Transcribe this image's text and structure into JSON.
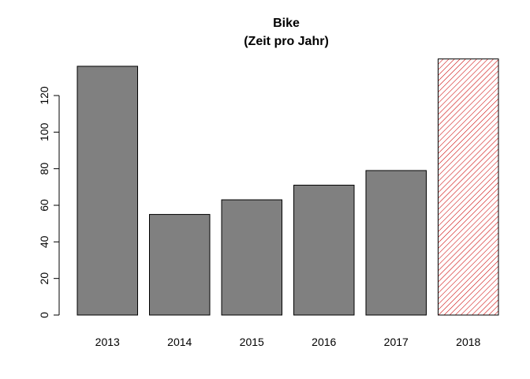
{
  "chart_data": {
    "type": "bar",
    "title": "Bike",
    "subtitle": "(Zeit pro Jahr)",
    "xlabel": "",
    "ylabel": "",
    "categories": [
      "2013",
      "2014",
      "2015",
      "2016",
      "2017",
      "2018"
    ],
    "values": [
      136,
      55,
      63,
      71,
      79,
      140
    ],
    "yticks": [
      0,
      20,
      40,
      60,
      80,
      100,
      120
    ],
    "ylim": [
      0,
      140
    ],
    "grid": false,
    "legend": "none",
    "bar_fill": "#808080",
    "bar_stroke": "#000000",
    "highlight_category": "2018",
    "highlight_pattern": "diagonal-hatch",
    "highlight_color": "#cc0000"
  }
}
